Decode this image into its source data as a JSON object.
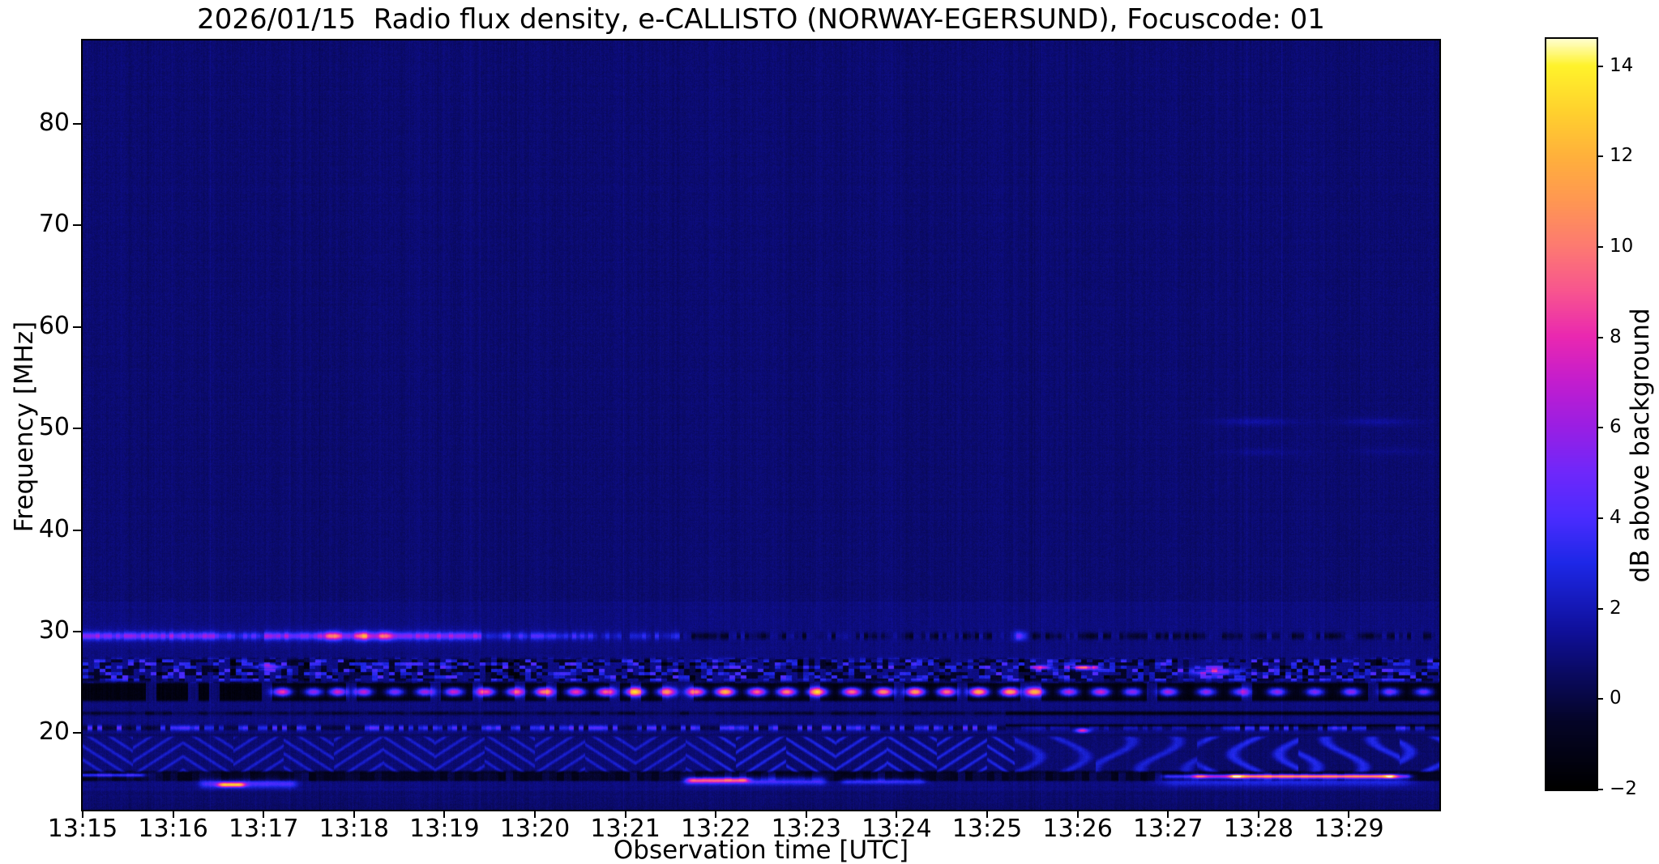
{
  "chart_data": {
    "type": "heatmap",
    "title": "2026/01/15  Radio flux density, e-CALLISTO (NORWAY-EGERSUND), Focuscode: 01",
    "xlabel": "Observation time [UTC]",
    "ylabel": "Frequency [MHz]",
    "x_ticks": [
      "13:15",
      "13:16",
      "13:17",
      "13:18",
      "13:19",
      "13:20",
      "13:21",
      "13:22",
      "13:23",
      "13:24",
      "13:25",
      "13:26",
      "13:27",
      "13:28",
      "13:29"
    ],
    "x_range_minutes": [
      0,
      15
    ],
    "y_ticks": [
      20,
      30,
      40,
      50,
      60,
      70,
      80
    ],
    "y_range_mhz": [
      12.46,
      88.21
    ],
    "grid": false,
    "background_level_db": 0.8,
    "colorbar": {
      "label": "dB above background",
      "ticks": [
        -2,
        0,
        2,
        4,
        6,
        8,
        10,
        12,
        14
      ],
      "range": [
        -2,
        14.6
      ],
      "stops": [
        [
          -2,
          "#000000"
        ],
        [
          -0.5,
          "#050528"
        ],
        [
          0.5,
          "#0a0a5f"
        ],
        [
          1.5,
          "#10109b"
        ],
        [
          3,
          "#1e28e8"
        ],
        [
          4,
          "#4b2cff"
        ],
        [
          5,
          "#6f28fb"
        ],
        [
          6,
          "#9a1fe4"
        ],
        [
          7,
          "#c31dcf"
        ],
        [
          8,
          "#ea28b1"
        ],
        [
          9,
          "#f85590"
        ],
        [
          10,
          "#fd7a72"
        ],
        [
          11,
          "#ff9753"
        ],
        [
          12,
          "#ffb13c"
        ],
        [
          13,
          "#ffd22e"
        ],
        [
          14,
          "#fff32b"
        ],
        [
          14.6,
          "#ffffd0"
        ]
      ]
    },
    "bands": [
      {
        "id": "rfi-line-29.6MHz",
        "kind": "line",
        "f": 29.6,
        "sigma": 0.24,
        "segments": [
          [
            0,
            1.5,
            3.6
          ],
          [
            1.5,
            2.0,
            2.2
          ],
          [
            2.0,
            4.4,
            3.9
          ],
          [
            4.4,
            5.6,
            1.8
          ],
          [
            5.6,
            6.6,
            1.0
          ],
          [
            6.6,
            15,
            -0.6
          ]
        ],
        "bright_blobs": [
          [
            2.75,
            5.2
          ],
          [
            3.1,
            5.5
          ],
          [
            3.35,
            5.0
          ],
          [
            10.35,
            4.8
          ]
        ]
      },
      {
        "id": "speckle-band-26MHz",
        "kind": "speckle",
        "f_min": 25.4,
        "f_max": 27.1,
        "events": [
          [
            2.05,
            26.6,
            4.5,
            0.1,
            0.2
          ],
          [
            10.6,
            26.5,
            6.0,
            0.07,
            0.15
          ],
          [
            11.07,
            26.5,
            9.5,
            0.1,
            0.14
          ],
          [
            12.5,
            26.1,
            4.5,
            0.22,
            0.25
          ]
        ]
      },
      {
        "id": "dash-row-24MHz",
        "kind": "dashes",
        "f": 24.1,
        "sigma": 0.3,
        "f_min": 23.4,
        "f_max": 24.8,
        "dash_width_min": 0.075,
        "dashes": [
          [
            2.2,
            7.5
          ],
          [
            2.55,
            5
          ],
          [
            2.82,
            6.5
          ],
          [
            3.1,
            6
          ],
          [
            3.45,
            4.5
          ],
          [
            3.78,
            5.5
          ],
          [
            4.1,
            6.5
          ],
          [
            4.45,
            8
          ],
          [
            4.78,
            7
          ],
          [
            5.1,
            9.5
          ],
          [
            5.45,
            7.5
          ],
          [
            5.78,
            8.5
          ],
          [
            6.1,
            10.5
          ],
          [
            6.45,
            8
          ],
          [
            6.78,
            9
          ],
          [
            7.1,
            11.5
          ],
          [
            7.45,
            8.5
          ],
          [
            7.78,
            9.5
          ],
          [
            8.12,
            10.5
          ],
          [
            8.5,
            9
          ],
          [
            8.85,
            10
          ],
          [
            9.2,
            10.5
          ],
          [
            9.55,
            9
          ],
          [
            9.9,
            11
          ],
          [
            10.25,
            11
          ],
          [
            10.52,
            9.5
          ],
          [
            10.9,
            6
          ],
          [
            11.25,
            6.5
          ],
          [
            11.6,
            5
          ],
          [
            12.0,
            5.5
          ],
          [
            12.42,
            5
          ],
          [
            12.8,
            4.5
          ],
          [
            13.2,
            5
          ],
          [
            13.62,
            4.5
          ],
          [
            14.02,
            5
          ],
          [
            14.45,
            4.5
          ],
          [
            14.82,
            4
          ]
        ]
      },
      {
        "id": "dark-line-22MHz",
        "kind": "darkline",
        "f": 22.0,
        "sigma": 0.1,
        "solid_from_t": 10.2,
        "second_line_f": 20.8
      },
      {
        "id": "speckle-dots-20.5MHz",
        "kind": "dots",
        "f": 20.55,
        "sigma": 0.18,
        "fade_t": 10.2,
        "return_t": 12.6,
        "bright_event": [
          11.05,
          20.3,
          7.5
        ]
      },
      {
        "id": "ionospheric-herringbone",
        "kind": "herringbone",
        "f_min": 16.35,
        "f_max": 19.55,
        "cell_minutes": 0.55,
        "amp_segments": [
          [
            0,
            7,
            1.25
          ],
          [
            7,
            10.3,
            1.65
          ],
          [
            10.3,
            12.4,
            1.35
          ],
          [
            12.4,
            15,
            1.8
          ]
        ]
      },
      {
        "id": "event-row-15.8MHz",
        "kind": "eventrow",
        "f_min": 15.45,
        "f_max": 16.1,
        "events": [
          [
            0.0,
            0.62,
            15.9,
            4.2,
            0.12,
            "blue streak"
          ],
          [
            1.35,
            2.3,
            15.05,
            3.0,
            0.3,
            "blue patch"
          ],
          [
            1.56,
            1.72,
            14.95,
            9.5,
            0.15,
            "pink burst"
          ],
          [
            6.7,
            8.15,
            15.35,
            3.3,
            0.28,
            "blue patch"
          ],
          [
            6.75,
            7.3,
            15.4,
            6.5,
            0.16,
            "magenta core"
          ],
          [
            8.45,
            9.25,
            15.3,
            2.8,
            0.2,
            "blue patch"
          ],
          [
            12.0,
            12.35,
            15.78,
            4.0,
            0.13,
            "blue streak"
          ],
          [
            12.35,
            12.75,
            15.78,
            7.0,
            0.13,
            "magenta streak"
          ],
          [
            12.75,
            14.45,
            15.78,
            10.8,
            0.13,
            "orange streak"
          ],
          [
            14.45,
            14.62,
            15.78,
            5.0,
            0.13,
            "streak fade"
          ]
        ]
      },
      {
        "id": "faint-blobs-50MHz",
        "kind": "blobs",
        "events": [
          [
            12.95,
            50.7,
            0.8
          ],
          [
            14.3,
            50.7,
            0.7
          ],
          [
            13.05,
            47.7,
            0.45
          ],
          [
            14.45,
            47.8,
            0.4
          ]
        ]
      }
    ]
  }
}
